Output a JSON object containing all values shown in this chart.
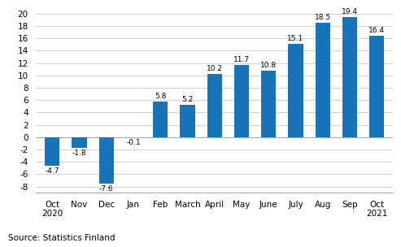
{
  "categories": [
    "Oct\n2020",
    "Nov",
    "Dec",
    "Jan",
    "Feb",
    "March",
    "April",
    "May",
    "June",
    "July",
    "Aug",
    "Sep",
    "Oct\n2021"
  ],
  "values": [
    -4.7,
    -1.8,
    -7.6,
    -0.1,
    5.8,
    5.2,
    10.2,
    11.7,
    10.8,
    15.1,
    18.5,
    19.4,
    16.4
  ],
  "value_labels": [
    "-4.7",
    "-1.8",
    "-7.6",
    "-0.1",
    "5.8",
    "5.2",
    "10.2",
    "11.7",
    "10.8",
    "15.1",
    "18.5",
    "19.4",
    "16.4"
  ],
  "bar_color": "#1874b8",
  "ylim": [
    -9,
    21
  ],
  "yticks": [
    -8,
    -6,
    -4,
    -2,
    0,
    2,
    4,
    6,
    8,
    10,
    12,
    14,
    16,
    18,
    20
  ],
  "source_text": "Source: Statistics Finland",
  "label_fontsize": 6.5,
  "tick_fontsize": 7.5,
  "source_fontsize": 7.5,
  "background_color": "#ffffff",
  "grid_color": "#d0d0d0",
  "bar_width": 0.55
}
